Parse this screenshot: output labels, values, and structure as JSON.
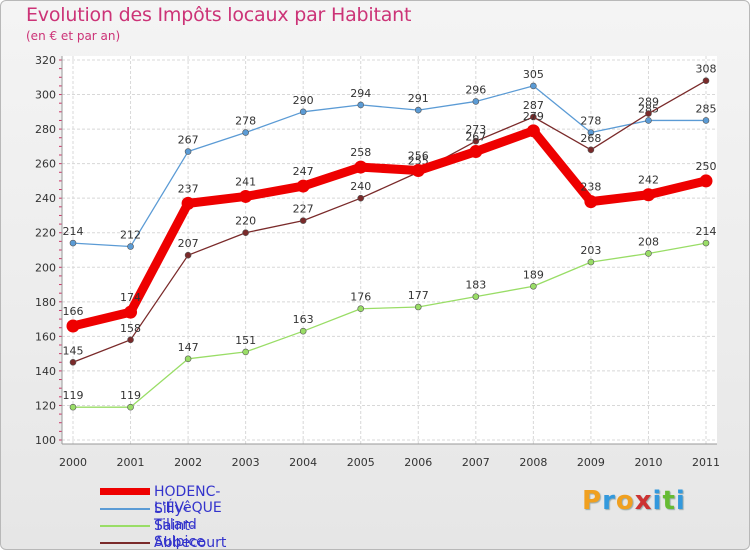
{
  "header": {
    "title": "Evolution des Impôts locaux par Habitant",
    "subtitle": "(en € et par an)"
  },
  "chart_data": {
    "type": "line",
    "title": "Evolution des Impôts locaux par Habitant",
    "subtitle": "(en € et par an)",
    "x": [
      "2000",
      "2001",
      "2002",
      "2003",
      "2004",
      "2005",
      "2006",
      "2007",
      "2008",
      "2009",
      "2010",
      "2011"
    ],
    "ylim": [
      100,
      320
    ],
    "yticks": [
      100,
      120,
      140,
      160,
      180,
      200,
      220,
      240,
      260,
      280,
      300,
      320
    ],
    "grid": true,
    "legend_position": "bottom-left",
    "series": [
      {
        "name": "Silly-Tillard",
        "color": "#5b9bd5",
        "values": [
          214,
          212,
          267,
          278,
          290,
          294,
          291,
          296,
          305,
          278,
          285,
          285
        ]
      },
      {
        "name": "Saint-Sulpice",
        "color": "#99dd66",
        "values": [
          119,
          119,
          147,
          151,
          163,
          176,
          177,
          183,
          189,
          203,
          208,
          214
        ]
      },
      {
        "name": "Abbecourt",
        "color": "#7a2a2a",
        "values": [
          145,
          158,
          207,
          220,
          227,
          240,
          255,
          273,
          287,
          268,
          289,
          308
        ]
      },
      {
        "name": "HODENC-L'ÉVêQUE",
        "color": "#ee0000",
        "values": [
          166,
          174,
          237,
          241,
          247,
          258,
          256,
          267,
          279,
          238,
          242,
          250
        ]
      }
    ]
  },
  "legend": {
    "items": [
      {
        "label": "HODENC-L'ÉVêQUE",
        "color": "#ee0000"
      },
      {
        "label": "Silly-Tillard",
        "color": "#5b9bd5"
      },
      {
        "label": "Saint-Sulpice",
        "color": "#99dd66"
      },
      {
        "label": "Abbecourt",
        "color": "#7a2a2a"
      }
    ]
  },
  "logo": {
    "letters": [
      "P",
      "r",
      "o",
      "x",
      "i",
      "t",
      "i"
    ],
    "colors": [
      "#f0a020",
      "#3399dd",
      "#f0a020",
      "#cc3333",
      "#3399dd",
      "#66bb33",
      "#3399dd"
    ]
  }
}
